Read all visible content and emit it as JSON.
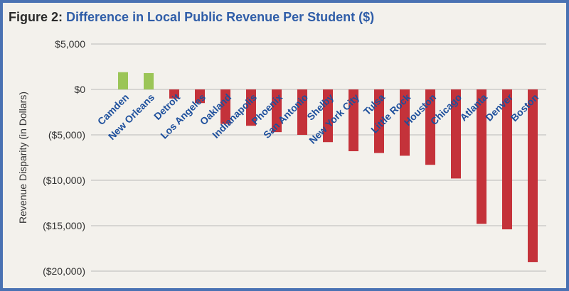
{
  "figure": {
    "label": "Figure 2:",
    "title": "Difference in Local Public Revenue Per Student ($)"
  },
  "colors": {
    "positive": "#9bc557",
    "negative": "#c4323a",
    "frame": "#4a72b3",
    "title_accent": "#2f5da8",
    "category_label": "#1d4f9c"
  },
  "chart_data": {
    "type": "bar",
    "title": "Difference in Local Public Revenue Per Student ($)",
    "xlabel": "",
    "ylabel": "Revenue Disparity (in Dollars)",
    "ylim": [
      -20000,
      5000
    ],
    "yticks": [
      5000,
      0,
      -5000,
      -10000,
      -15000,
      -20000
    ],
    "ytick_labels": [
      "$5,000",
      "$0",
      "($5,000)",
      "($10,000)",
      "($15,000)",
      "($20,000)"
    ],
    "grid": true,
    "categories": [
      "Camden",
      "New Orleans",
      "Detroit",
      "Los Angeles",
      "Oakland",
      "Indianapolis",
      "Phoenix",
      "San Antonio",
      "Shelby",
      "New York City",
      "Tulsa",
      "Little Rock",
      "Houston",
      "Chicago",
      "Atlanta",
      "Denver",
      "Boston"
    ],
    "values": [
      1900,
      1800,
      -1000,
      -1500,
      -3800,
      -4000,
      -4700,
      -5000,
      -5800,
      -6800,
      -7000,
      -7300,
      -8300,
      -9800,
      -14800,
      -15400,
      -19000
    ]
  }
}
